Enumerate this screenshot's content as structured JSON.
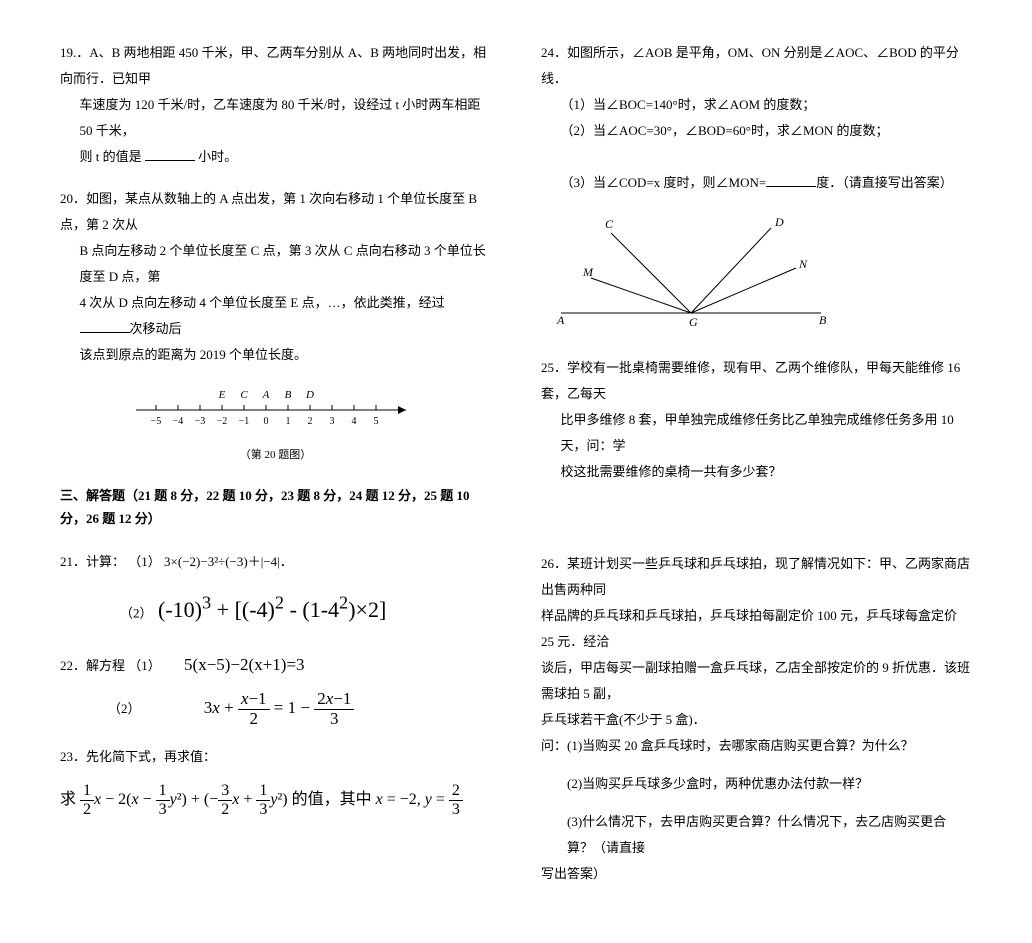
{
  "left": {
    "q19": {
      "num": "19.",
      "line1": "．A、B 两地相距 450 千米，甲、乙两车分别从 A、B 两地同时出发，相向而行．已知甲",
      "line2": "车速度为 120 千米/时，乙车速度为 80 千米/时，设经过 t 小时两车相距 50 千米，",
      "line3_pre": "则 t 的值是 ",
      "line3_post": " 小时。"
    },
    "q20": {
      "num": "20．",
      "line1": "如图，某点从数轴上的 A 点出发，第 1 次向右移动 1 个单位长度至 B 点，第 2 次从",
      "line2": "B 点向左移动 2 个单位长度至 C 点，第 3 次从 C 点向右移动 3 个单位长度至 D 点，第",
      "line3": "4 次从 D 点向左移动 4 个单位长度至 E 点，…，依此类推，经过",
      "line3_post": "次移动后",
      "line4": "该点到原点的距离为 2019 个单位长度。",
      "labels": [
        "E",
        "C",
        "A",
        "B",
        "D"
      ],
      "ticks": [
        "−5",
        "−4",
        "−3",
        "−2",
        "−1",
        "0",
        "1",
        "2",
        "3",
        "4",
        "5"
      ],
      "caption": "（第 20 题图）"
    },
    "section3": "三、解答题（21 题 8 分，22 题 10 分，23 题 8 分，24 题 12 分，25 题 10 分，26 题 12 分）",
    "q21": {
      "num": "21．",
      "title": "计算：",
      "part1_label": "（1）",
      "part1": "3×(−2)−3²÷(−3)＋|−4|．",
      "part2_label": "（2）",
      "part2": "(-10)³ + [(-4)² - (1-4²)×2]"
    },
    "q22": {
      "num": "22．",
      "title": "解方程",
      "p1_label": "（1）",
      "p1": "5(x−5)−2(x+1)=3",
      "p2_label": "（2）"
    },
    "q23": {
      "num": "23．",
      "title": "先化简下式，再求值："
    }
  },
  "right": {
    "q24": {
      "num": "24．",
      "line1": "如图所示，∠AOB 是平角，OM、ON 分别是∠AOC、∠BOD 的平分线．",
      "p1": "（1）当∠BOC=140°时，求∠AOM 的度数；",
      "p2": "（2）当∠AOC=30°，∠BOD=60°时，求∠MON 的度数；",
      "p3_pre": "（3）当∠COD=x 度时，则∠MON=",
      "p3_post": "度．（请直接写出答案）",
      "diagram_labels": {
        "C": "C",
        "D": "D",
        "M": "M",
        "N": "N",
        "A": "A",
        "G": "G",
        "B": "B"
      }
    },
    "q25": {
      "num": "25．",
      "line1": "学校有一批桌椅需要维修，现有甲、乙两个维修队，甲每天能维修 16 套，乙每天",
      "line2": "比甲多维修 8 套，甲单独完成维修任务比乙单独完成维修任务多用 10 天，问：学",
      "line3": "校这批需要维修的桌椅一共有多少套？"
    },
    "q26": {
      "num": "26．",
      "line1": "某班计划买一些乒乓球和乒乓球拍，现了解情况如下：甲、乙两家商店出售两种同",
      "line2": "样品牌的乒乓球和乒乓球拍，乒乓球拍每副定价 100 元，乒乓球每盒定价 25 元．经洽",
      "line3": "谈后，甲店每买一副球拍赠一盒乒乓球，乙店全部按定价的 9 折优惠．该班需球拍 5 副，",
      "line4": "乒乓球若干盒(不少于 5 盒)．",
      "ask": "问：",
      "p1": "(1)当购买 20 盒乒乓球时，去哪家商店购买更合算？为什么？",
      "p2": "(2)当购买乒乓球多少盒时，两种优惠办法付款一样？",
      "p3": "(3)什么情况下，去甲店购买更合算？什么情况下，去乙店购买更合算？（请直接",
      "p3b": "写出答案）"
    }
  }
}
